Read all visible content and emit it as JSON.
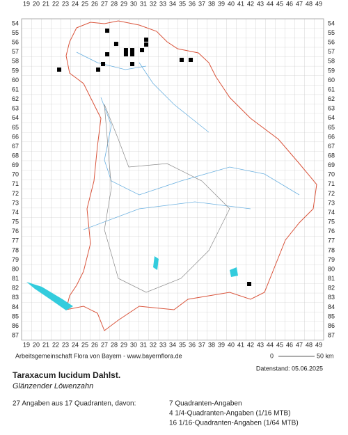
{
  "map": {
    "columns": [
      19,
      20,
      21,
      22,
      23,
      24,
      25,
      26,
      27,
      28,
      29,
      30,
      31,
      32,
      33,
      34,
      35,
      36,
      37,
      38,
      39,
      40,
      41,
      42,
      43,
      44,
      45,
      46,
      47,
      48,
      49
    ],
    "rows": [
      54,
      55,
      56,
      57,
      58,
      59,
      60,
      61,
      62,
      63,
      64,
      65,
      66,
      67,
      68,
      69,
      70,
      71,
      72,
      73,
      74,
      75,
      76,
      77,
      78,
      79,
      80,
      81,
      82,
      83,
      84,
      85,
      86,
      87
    ],
    "occurrences": [
      {
        "x": 27.29,
        "y": 54.74
      },
      {
        "x": 28.21,
        "y": 56.14
      },
      {
        "x": 29.21,
        "y": 56.8
      },
      {
        "x": 29.86,
        "y": 56.8
      },
      {
        "x": 31.29,
        "y": 55.69
      },
      {
        "x": 31.29,
        "y": 56.21
      },
      {
        "x": 30.86,
        "y": 56.8
      },
      {
        "x": 27.29,
        "y": 57.24
      },
      {
        "x": 29.21,
        "y": 57.24
      },
      {
        "x": 29.86,
        "y": 57.24
      },
      {
        "x": 26.86,
        "y": 58.27
      },
      {
        "x": 29.86,
        "y": 58.27
      },
      {
        "x": 34.93,
        "y": 57.83
      },
      {
        "x": 35.86,
        "y": 57.83
      },
      {
        "x": 22.36,
        "y": 58.86
      },
      {
        "x": 26.36,
        "y": 58.86
      },
      {
        "x": 41.86,
        "y": 81.54
      }
    ],
    "credit": "Arbeitsgemeinschaft Flora von Bayern - www.bayernflora.de",
    "scale_start": "0",
    "scale_end": "50 km",
    "date": "Datenstand: 05.06.2025",
    "title": "Taraxacum lucidum Dahlst.",
    "subtitle": "Glänzender Löwenzahn",
    "summary": "27 Angaben aus 17 Quadranten, davon:",
    "counts": [
      "7 Quadranten-Angaben",
      "4 1/4-Quadranten-Angaben (1/16 MTB)",
      "16 1/16-Quadranten-Angaben (1/64 MTB)"
    ]
  }
}
